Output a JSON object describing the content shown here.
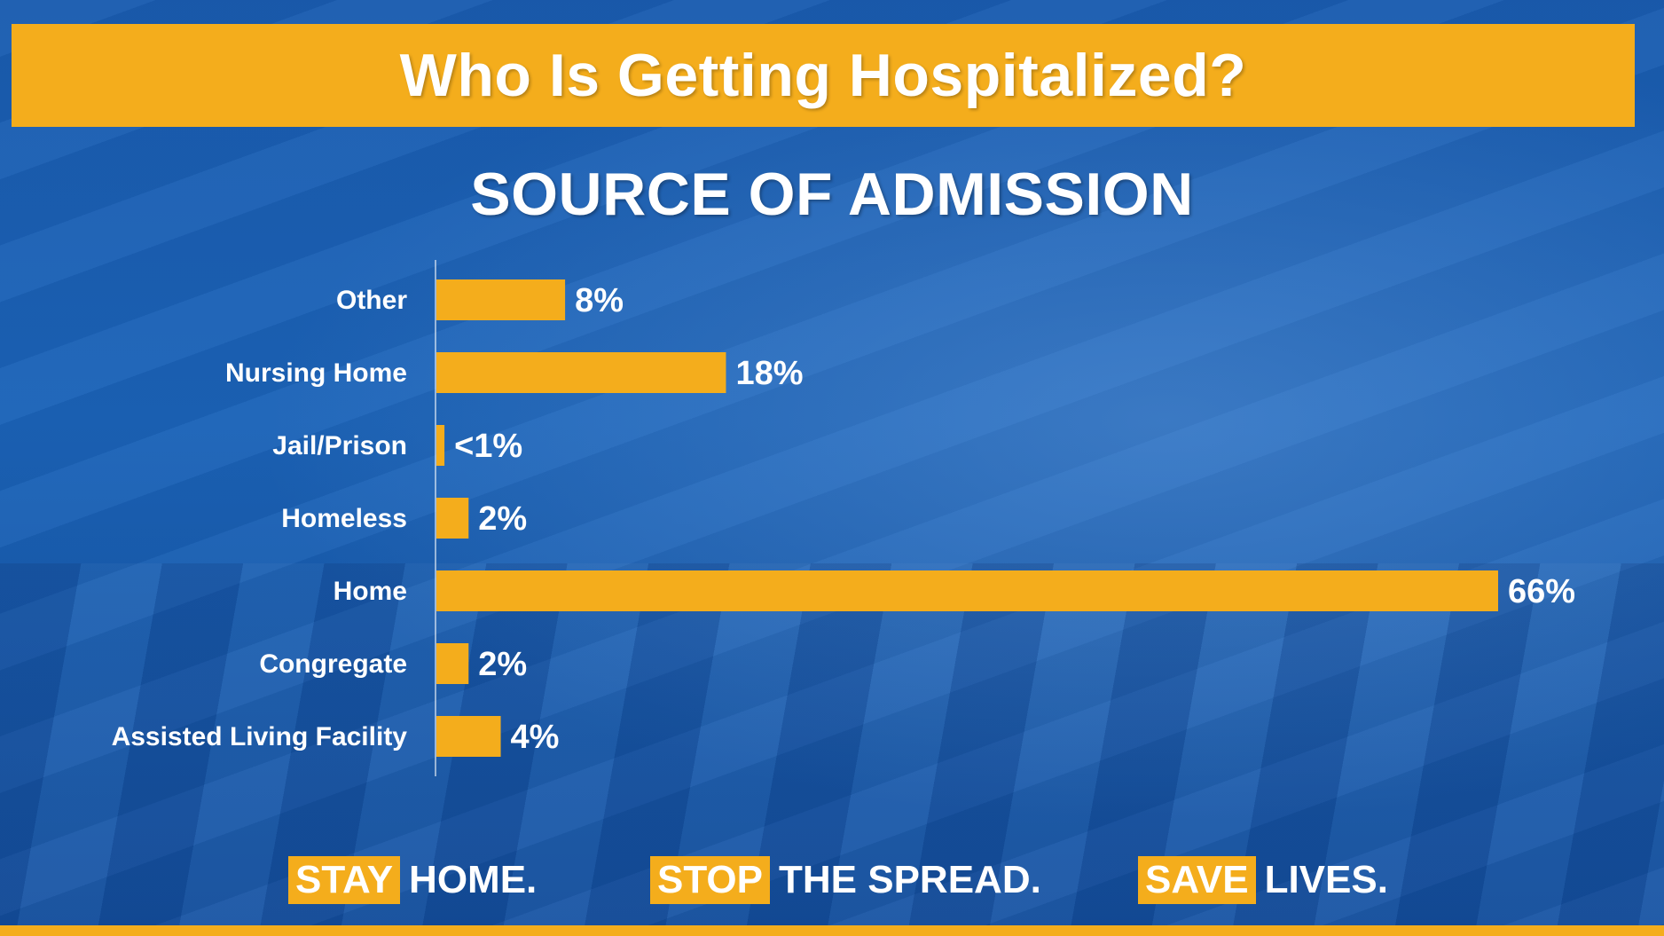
{
  "header": {
    "title": "Who Is Getting Hospitalized?"
  },
  "chart_data": {
    "type": "bar",
    "orientation": "horizontal",
    "title": "SOURCE OF ADMISSION",
    "categories": [
      "Other",
      "Nursing Home",
      "Jail/Prison",
      "Homeless",
      "Home",
      "Congregate",
      "Assisted Living Facility"
    ],
    "values": [
      8,
      18,
      0.5,
      2,
      66,
      2,
      4
    ],
    "labels": [
      "8%",
      "18%",
      "<1%",
      "2%",
      "66%",
      "2%",
      "4%"
    ],
    "xlim": [
      0,
      66
    ],
    "grid": false,
    "legend": "none",
    "bar_color": "#f4ad1c"
  },
  "footer": {
    "slogans": [
      {
        "highlight": "STAY",
        "text": "HOME."
      },
      {
        "highlight": "STOP",
        "text": "THE SPREAD."
      },
      {
        "highlight": "SAVE",
        "text": "LIVES."
      }
    ]
  },
  "colors": {
    "accent": "#f4ad1c",
    "background": "#1553a6",
    "text": "#ffffff"
  }
}
